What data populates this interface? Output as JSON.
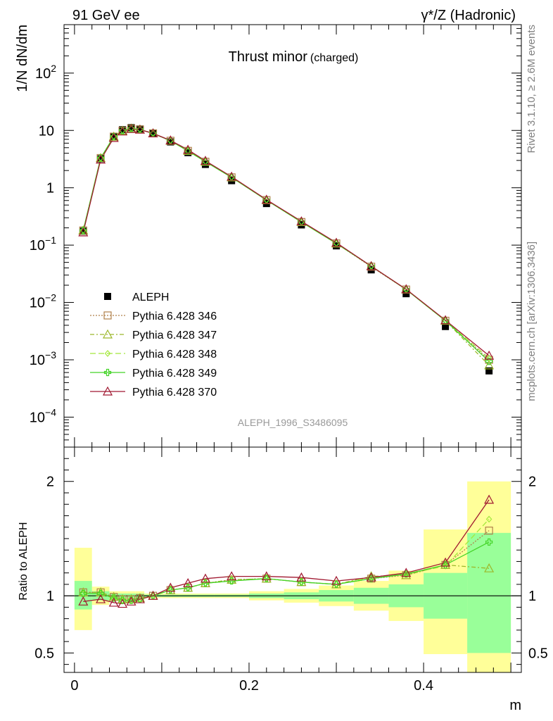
{
  "header": {
    "left": "91 GeV ee",
    "right": "γ*/Z (Hadronic)"
  },
  "side": {
    "top": "Rivet 3.1.10, ≥ 2.6M events",
    "bottom": "mcplots.cern.ch [arXiv:1306.3436]"
  },
  "colors": {
    "data": "#000000",
    "p346": "#b0804a",
    "p347": "#9cb82a",
    "p348": "#a4e83c",
    "p349": "#44d428",
    "p370": "#a01830",
    "band_inner": "#99ff99",
    "band_outer": "#ffff99"
  },
  "chart_data": [
    {
      "type": "line",
      "title": "Thrust minor",
      "title_suffix": "(charged)",
      "ylabel": "1/N dN/dm",
      "analysis_label": "ALEPH_1996_S3486095",
      "log_y": true,
      "xlim": [
        -0.012,
        0.512
      ],
      "ylim": [
        3e-05,
        700
      ],
      "y_ticks": [
        {
          "v": 0.0001,
          "m": "10",
          "e": "−4"
        },
        {
          "v": 0.001,
          "m": "10",
          "e": "−3"
        },
        {
          "v": 0.01,
          "m": "10",
          "e": "−2"
        },
        {
          "v": 0.1,
          "m": "10",
          "e": "−1"
        },
        {
          "v": 1,
          "m": "1",
          "e": ""
        },
        {
          "v": 10,
          "m": "10",
          "e": ""
        },
        {
          "v": 100,
          "m": "10",
          "e": "2"
        }
      ],
      "legend_position": "lower-left",
      "x": [
        0.01,
        0.03,
        0.045,
        0.055,
        0.065,
        0.075,
        0.09,
        0.11,
        0.13,
        0.15,
        0.18,
        0.22,
        0.26,
        0.3,
        0.34,
        0.38,
        0.425,
        0.475
      ],
      "series": [
        {
          "name": "ALEPH",
          "key": "data",
          "marker": "filled-square",
          "values": [
            0.175,
            3.2,
            7.9,
            10.3,
            11.2,
            10.6,
            8.9,
            6.3,
            4.1,
            2.55,
            1.33,
            0.53,
            0.225,
            0.097,
            0.037,
            0.0142,
            0.0038,
            0.00064
          ]
        },
        {
          "name": "Pythia 6.428 346",
          "key": "p346",
          "marker": "open-square",
          "dash": "2,2",
          "values": [
            0.18,
            3.3,
            7.8,
            9.9,
            10.8,
            10.4,
            8.9,
            6.6,
            4.4,
            2.85,
            1.52,
            0.61,
            0.253,
            0.107,
            0.042,
            0.0168,
            0.0048,
            0.001
          ]
        },
        {
          "name": "Pythia 6.428 347",
          "key": "p347",
          "marker": "open-triangle",
          "dash": "6,3,2,3",
          "values": [
            0.18,
            3.3,
            7.8,
            9.9,
            10.8,
            10.4,
            8.9,
            6.6,
            4.4,
            2.85,
            1.52,
            0.61,
            0.253,
            0.107,
            0.043,
            0.0168,
            0.0048,
            0.0008
          ]
        },
        {
          "name": "Pythia 6.428 348",
          "key": "p348",
          "marker": "open-diamond",
          "dash": "8,4",
          "values": [
            0.18,
            3.3,
            7.8,
            9.9,
            10.8,
            10.4,
            8.9,
            6.6,
            4.4,
            2.85,
            1.52,
            0.61,
            0.253,
            0.107,
            0.043,
            0.0168,
            0.0048,
            0.00107
          ]
        },
        {
          "name": "Pythia 6.428 349",
          "key": "p349",
          "marker": "open-cross",
          "dash": "",
          "values": [
            0.18,
            3.3,
            7.8,
            9.9,
            10.8,
            10.4,
            8.9,
            6.6,
            4.4,
            2.85,
            1.52,
            0.61,
            0.253,
            0.107,
            0.043,
            0.0168,
            0.0048,
            0.00094
          ]
        },
        {
          "name": "Pythia 6.428 370",
          "key": "p370",
          "marker": "open-triangle",
          "dash": "",
          "values": [
            0.167,
            3.1,
            7.4,
            9.6,
            10.6,
            10.3,
            8.9,
            6.7,
            4.6,
            2.95,
            1.56,
            0.62,
            0.26,
            0.11,
            0.043,
            0.017,
            0.0049,
            0.00118
          ]
        }
      ]
    },
    {
      "type": "line",
      "ylabel": "Ratio to ALEPH",
      "xlabel": "m",
      "xlim": [
        -0.012,
        0.512
      ],
      "ylim": [
        0.33,
        2.3
      ],
      "x_ticks": [
        0,
        0.2,
        0.4
      ],
      "y_ticks": [
        0.5,
        1,
        2
      ],
      "x_edges": [
        0.0,
        0.02,
        0.04,
        0.05,
        0.06,
        0.07,
        0.08,
        0.1,
        0.12,
        0.14,
        0.16,
        0.2,
        0.24,
        0.28,
        0.32,
        0.36,
        0.4,
        0.45,
        0.5
      ],
      "band_inner": [
        [
          0.88,
          1.13
        ],
        [
          0.96,
          1.04
        ],
        [
          0.98,
          1.02
        ],
        [
          0.98,
          1.02
        ],
        [
          0.98,
          1.02
        ],
        [
          0.98,
          1.02
        ],
        [
          0.99,
          1.01
        ],
        [
          0.99,
          1.01
        ],
        [
          0.99,
          1.01
        ],
        [
          0.99,
          1.01
        ],
        [
          0.99,
          1.01
        ],
        [
          0.98,
          1.02
        ],
        [
          0.97,
          1.03
        ],
        [
          0.95,
          1.05
        ],
        [
          0.93,
          1.07
        ],
        [
          0.9,
          1.1
        ],
        [
          0.8,
          1.2
        ],
        [
          0.5,
          1.55
        ]
      ],
      "band_outer": [
        [
          0.7,
          1.42
        ],
        [
          0.92,
          1.08
        ],
        [
          0.96,
          1.04
        ],
        [
          0.96,
          1.04
        ],
        [
          0.96,
          1.04
        ],
        [
          0.96,
          1.04
        ],
        [
          0.98,
          1.02
        ],
        [
          0.98,
          1.02
        ],
        [
          0.98,
          1.02
        ],
        [
          0.98,
          1.02
        ],
        [
          0.98,
          1.02
        ],
        [
          0.96,
          1.04
        ],
        [
          0.94,
          1.06
        ],
        [
          0.91,
          1.09
        ],
        [
          0.87,
          1.13
        ],
        [
          0.78,
          1.22
        ],
        [
          0.49,
          1.58
        ],
        [
          0.33,
          2.0
        ]
      ],
      "series": [
        {
          "key": "p346",
          "values": [
            1.03,
            1.03,
            0.99,
            0.97,
            0.97,
            0.98,
            1.0,
            1.05,
            1.07,
            1.11,
            1.14,
            1.15,
            1.12,
            1.1,
            1.15,
            1.18,
            1.27,
            1.57
          ]
        },
        {
          "key": "p347",
          "values": [
            1.03,
            1.03,
            0.99,
            0.97,
            0.97,
            0.98,
            1.0,
            1.05,
            1.07,
            1.11,
            1.14,
            1.15,
            1.12,
            1.1,
            1.17,
            1.18,
            1.27,
            1.24
          ]
        },
        {
          "key": "p348",
          "values": [
            1.02,
            1.02,
            0.98,
            0.96,
            0.96,
            0.97,
            1.0,
            1.05,
            1.07,
            1.11,
            1.13,
            1.15,
            1.12,
            1.1,
            1.16,
            1.19,
            1.26,
            1.67
          ]
        },
        {
          "key": "p349",
          "values": [
            1.02,
            1.02,
            0.98,
            0.96,
            0.96,
            0.97,
            1.0,
            1.05,
            1.07,
            1.11,
            1.13,
            1.15,
            1.12,
            1.1,
            1.15,
            1.19,
            1.27,
            1.47
          ]
        },
        {
          "key": "p370",
          "values": [
            0.95,
            0.97,
            0.94,
            0.93,
            0.95,
            0.97,
            1.0,
            1.07,
            1.11,
            1.15,
            1.17,
            1.17,
            1.16,
            1.13,
            1.16,
            1.2,
            1.29,
            1.84
          ]
        }
      ]
    }
  ]
}
